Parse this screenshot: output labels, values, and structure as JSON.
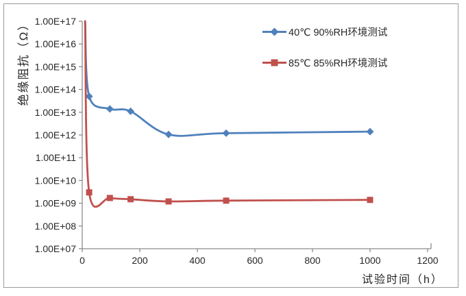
{
  "figure": {
    "background": "#ffffff",
    "frame_border_color": "#9a9a9a"
  },
  "chart_data": {
    "type": "line",
    "title": "",
    "grid": false,
    "legend_position": "top-right-inside",
    "axis_color": "#8c8c8c",
    "text_color": "#262626",
    "x_axis": {
      "label": "试验时间（h）",
      "min": 0,
      "max": 1200,
      "tick_step": 200,
      "tick_labels": [
        "0",
        "200",
        "400",
        "600",
        "800",
        "1000",
        "1200"
      ]
    },
    "y_axis": {
      "label": "绝缘阻抗（Ω）",
      "scale": "log10",
      "min_exp": 7,
      "max_exp": 17,
      "tick_labels": [
        "1.00E+17",
        "1.00E+16",
        "1.00E+15",
        "1.00E+14",
        "1.00E+13",
        "1.00E+12",
        "1.00E+11",
        "1.00E+10",
        "1.00E+09",
        "1.00E+08",
        "1.00E+07"
      ]
    },
    "series": [
      {
        "name": "40℃ 90%RH环境测试",
        "color": "#4F81BD",
        "marker": "diamond",
        "smooth": true,
        "points": [
          [
            10,
            1e+17
          ],
          [
            24,
            50000000000000.0
          ],
          [
            96,
            14000000000000.0
          ],
          [
            168,
            11000000000000.0
          ],
          [
            300,
            1050000000000.0
          ],
          [
            500,
            1200000000000.0
          ],
          [
            1000,
            1400000000000.0
          ]
        ]
      },
      {
        "name": "85℃ 85%RH环境测试",
        "color": "#C0504D",
        "marker": "square",
        "smooth": true,
        "points": [
          [
            10,
            1e+17
          ],
          [
            24,
            3000000000.0
          ],
          [
            96,
            1700000000.0
          ],
          [
            168,
            1500000000.0
          ],
          [
            300,
            1200000000.0
          ],
          [
            500,
            1300000000.0
          ],
          [
            1000,
            1400000000.0
          ]
        ]
      }
    ]
  }
}
